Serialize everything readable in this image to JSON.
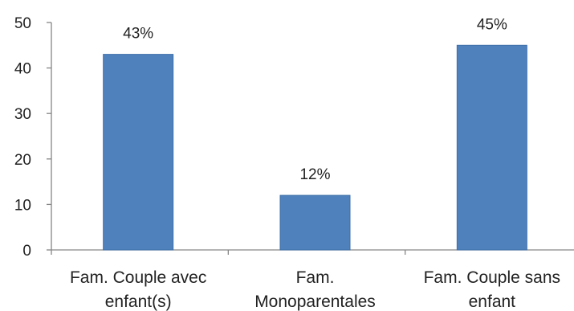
{
  "chart_data": {
    "type": "bar",
    "title": "",
    "xlabel": "",
    "ylabel": "",
    "ylim": [
      0,
      50
    ],
    "yticks": [
      0,
      10,
      20,
      30,
      40,
      50
    ],
    "grid": false,
    "categories": [
      [
        "Fam. Couple avec",
        "enfant(s)"
      ],
      [
        "Fam.",
        "Monoparentales"
      ],
      [
        "Fam. Couple sans",
        "enfant"
      ]
    ],
    "values": [
      43,
      12,
      45
    ],
    "data_labels": [
      "43%",
      "12%",
      "45%"
    ],
    "colors": {
      "bar": "#4F81BD",
      "bar_edge": "#3E6FA8",
      "axis": "#868686"
    }
  }
}
